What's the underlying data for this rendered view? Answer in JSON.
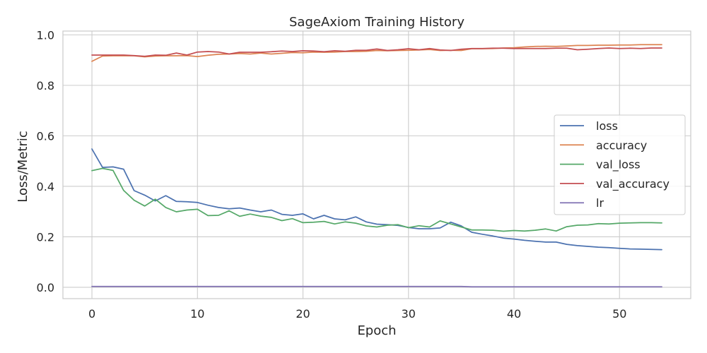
{
  "chart_data": {
    "type": "line",
    "title": "SageAxiom Training History",
    "xlabel": "Epoch",
    "ylabel": "Loss/Metric",
    "xlim": [
      -2.75,
      56.75
    ],
    "ylim": [
      -0.045,
      1.015
    ],
    "xticks": [
      0,
      10,
      20,
      30,
      40,
      50
    ],
    "yticks": [
      0.0,
      0.2,
      0.4,
      0.6,
      0.8,
      1.0
    ],
    "grid": true,
    "legend_position": "center-right",
    "x": [
      0,
      1,
      2,
      3,
      4,
      5,
      6,
      7,
      8,
      9,
      10,
      11,
      12,
      13,
      14,
      15,
      16,
      17,
      18,
      19,
      20,
      21,
      22,
      23,
      24,
      25,
      26,
      27,
      28,
      29,
      30,
      31,
      32,
      33,
      34,
      35,
      36,
      37,
      38,
      39,
      40,
      41,
      42,
      43,
      44,
      45,
      46,
      47,
      48,
      49,
      50,
      51,
      52,
      53,
      54
    ],
    "series": [
      {
        "name": "loss",
        "color": "#4c72b0",
        "values": [
          0.548,
          0.475,
          0.477,
          0.468,
          0.383,
          0.365,
          0.342,
          0.363,
          0.34,
          0.339,
          0.336,
          0.325,
          0.316,
          0.311,
          0.314,
          0.306,
          0.299,
          0.306,
          0.289,
          0.285,
          0.291,
          0.271,
          0.285,
          0.271,
          0.267,
          0.279,
          0.259,
          0.25,
          0.248,
          0.245,
          0.237,
          0.232,
          0.232,
          0.235,
          0.258,
          0.243,
          0.218,
          0.21,
          0.203,
          0.195,
          0.191,
          0.186,
          0.182,
          0.179,
          0.179,
          0.17,
          0.165,
          0.162,
          0.159,
          0.157,
          0.154,
          0.152,
          0.151,
          0.15,
          0.149
        ]
      },
      {
        "name": "accuracy",
        "color": "#dd8452",
        "values": [
          0.895,
          0.916,
          0.917,
          0.917,
          0.917,
          0.913,
          0.916,
          0.917,
          0.917,
          0.918,
          0.914,
          0.919,
          0.923,
          0.924,
          0.926,
          0.924,
          0.928,
          0.924,
          0.927,
          0.93,
          0.929,
          0.932,
          0.931,
          0.932,
          0.934,
          0.934,
          0.935,
          0.938,
          0.937,
          0.938,
          0.939,
          0.94,
          0.942,
          0.938,
          0.939,
          0.938,
          0.945,
          0.945,
          0.946,
          0.948,
          0.949,
          0.952,
          0.954,
          0.955,
          0.954,
          0.956,
          0.958,
          0.958,
          0.959,
          0.959,
          0.96,
          0.96,
          0.961,
          0.961,
          0.961
        ]
      },
      {
        "name": "val_loss",
        "color": "#55a868",
        "values": [
          0.462,
          0.471,
          0.463,
          0.384,
          0.345,
          0.322,
          0.349,
          0.316,
          0.299,
          0.306,
          0.309,
          0.284,
          0.285,
          0.303,
          0.281,
          0.29,
          0.282,
          0.277,
          0.264,
          0.272,
          0.256,
          0.258,
          0.261,
          0.251,
          0.259,
          0.254,
          0.243,
          0.239,
          0.246,
          0.248,
          0.236,
          0.244,
          0.239,
          0.263,
          0.251,
          0.239,
          0.227,
          0.227,
          0.226,
          0.222,
          0.225,
          0.223,
          0.226,
          0.231,
          0.223,
          0.24,
          0.246,
          0.247,
          0.252,
          0.251,
          0.254,
          0.255,
          0.256,
          0.256,
          0.255
        ]
      },
      {
        "name": "val_accuracy",
        "color": "#c44e52",
        "values": [
          0.92,
          0.92,
          0.92,
          0.92,
          0.918,
          0.915,
          0.92,
          0.919,
          0.928,
          0.92,
          0.932,
          0.934,
          0.932,
          0.924,
          0.931,
          0.931,
          0.931,
          0.933,
          0.936,
          0.934,
          0.937,
          0.936,
          0.933,
          0.937,
          0.935,
          0.939,
          0.939,
          0.944,
          0.938,
          0.941,
          0.945,
          0.941,
          0.946,
          0.94,
          0.938,
          0.943,
          0.946,
          0.946,
          0.947,
          0.947,
          0.946,
          0.946,
          0.946,
          0.946,
          0.947,
          0.947,
          0.941,
          0.943,
          0.946,
          0.948,
          0.946,
          0.947,
          0.946,
          0.948,
          0.948
        ]
      },
      {
        "name": "lr",
        "color": "#8172b3",
        "values": [
          0.003,
          0.003,
          0.003,
          0.003,
          0.003,
          0.003,
          0.003,
          0.003,
          0.003,
          0.003,
          0.003,
          0.003,
          0.003,
          0.003,
          0.003,
          0.003,
          0.003,
          0.003,
          0.003,
          0.003,
          0.003,
          0.003,
          0.003,
          0.003,
          0.003,
          0.003,
          0.003,
          0.003,
          0.003,
          0.003,
          0.003,
          0.003,
          0.003,
          0.003,
          0.003,
          0.003,
          0.002,
          0.002,
          0.002,
          0.002,
          0.002,
          0.002,
          0.002,
          0.002,
          0.002,
          0.002,
          0.002,
          0.002,
          0.002,
          0.002,
          0.002,
          0.002,
          0.002,
          0.002,
          0.002
        ]
      }
    ]
  }
}
